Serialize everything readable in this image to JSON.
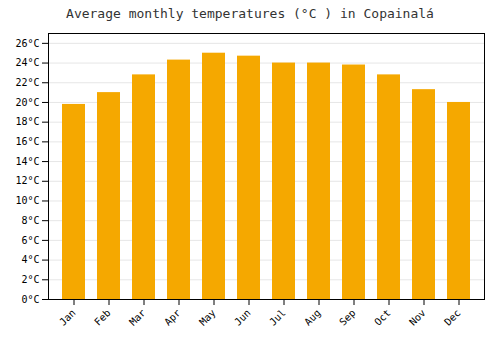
{
  "chart_data": {
    "type": "bar",
    "title": "Average monthly temperatures (°C ) in Copainalá",
    "categories": [
      "Jan",
      "Feb",
      "Mar",
      "Apr",
      "May",
      "Jun",
      "Jul",
      "Aug",
      "Sep",
      "Oct",
      "Nov",
      "Dec"
    ],
    "values": [
      19.8,
      21.0,
      22.8,
      24.3,
      25.0,
      24.7,
      24.0,
      24.0,
      23.8,
      22.8,
      21.3,
      20.0
    ],
    "color": "#F5A800",
    "ylim": [
      0,
      27
    ],
    "yticks": [
      {
        "value": 0,
        "label": "0°C"
      },
      {
        "value": 2,
        "label": "2°C"
      },
      {
        "value": 4,
        "label": "4°C"
      },
      {
        "value": 6,
        "label": "6°C"
      },
      {
        "value": 8,
        "label": "8°C"
      },
      {
        "value": 10,
        "label": "10°C"
      },
      {
        "value": 12,
        "label": "12°C"
      },
      {
        "value": 14,
        "label": "14°C"
      },
      {
        "value": 16,
        "label": "16°C"
      },
      {
        "value": 18,
        "label": "18°C"
      },
      {
        "value": 20,
        "label": "20°C"
      },
      {
        "value": 22,
        "label": "22°C"
      },
      {
        "value": 24,
        "label": "24°C"
      },
      {
        "value": 26,
        "label": "26°C"
      }
    ],
    "grid": true
  }
}
